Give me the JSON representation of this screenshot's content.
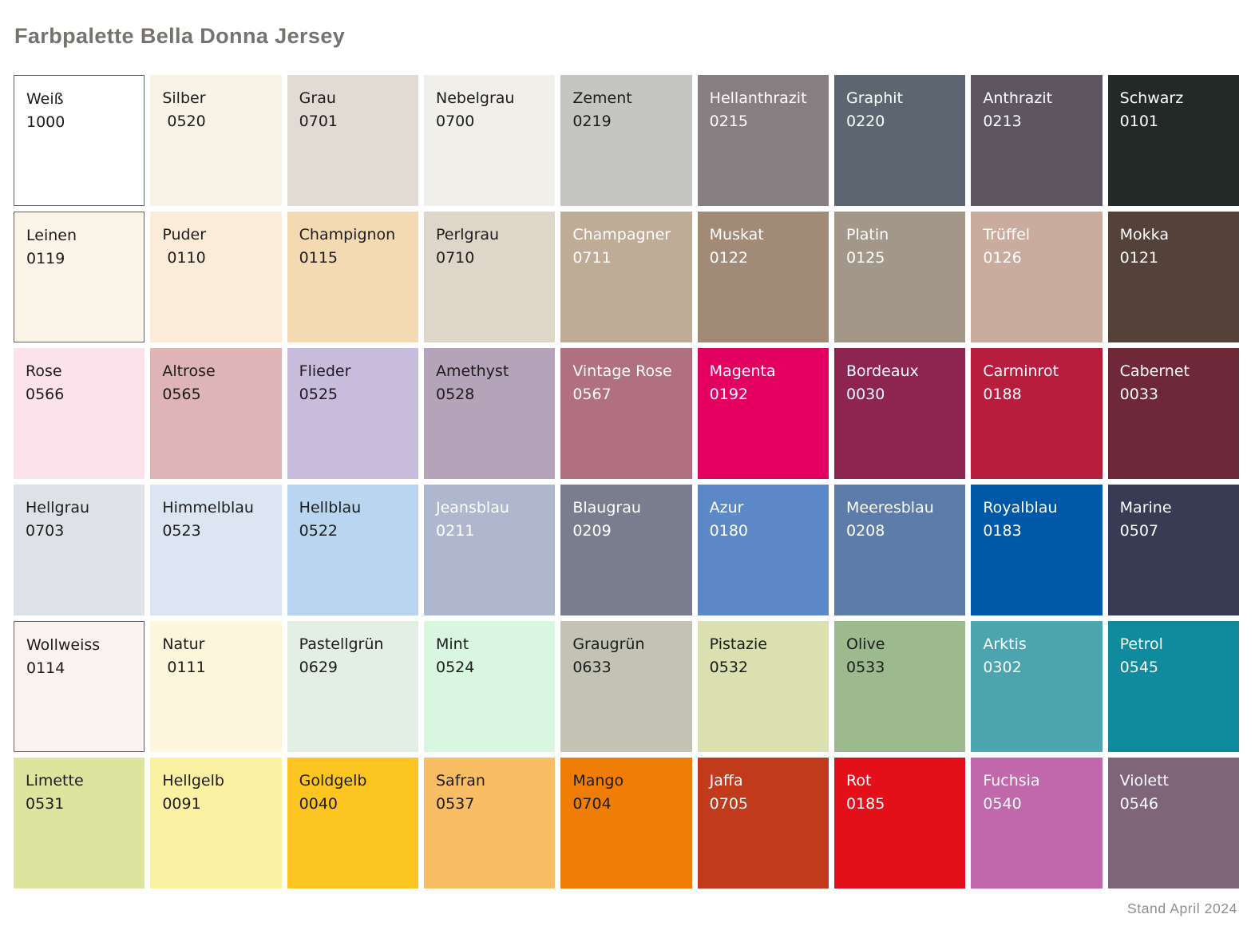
{
  "title": "Farbpalette Bella Donna Jersey",
  "footer": {
    "date_label": "Stand April 2024"
  },
  "palette": {
    "columns": 9,
    "rows": 6,
    "text_dark": "#1c1c1c",
    "text_light": "#ffffff",
    "border_color": "#62625f"
  },
  "swatches": [
    {
      "name": "Weiß",
      "number": "1000",
      "color": "#ffffff",
      "text": "dark",
      "border": true
    },
    {
      "name": "Silber",
      "number": " 0520",
      "color": "#f8f3e7",
      "text": "dark",
      "border": false
    },
    {
      "name": "Grau",
      "number": "0701",
      "color": "#e1dbd3",
      "text": "dark",
      "border": false
    },
    {
      "name": "Nebelgrau",
      "number": "0700",
      "color": "#f1efe9",
      "text": "dark",
      "border": false
    },
    {
      "name": "Zement",
      "number": "0219",
      "color": "#c5c5c2",
      "text": "dark",
      "border": false
    },
    {
      "name": "Hellanthrazit",
      "number": "0215",
      "color": "#867e80",
      "text": "light",
      "border": false
    },
    {
      "name": "Graphit",
      "number": "0220",
      "color": "#5c6671",
      "text": "light",
      "border": false
    },
    {
      "name": "Anthrazit",
      "number": "0213",
      "color": "#5d5560",
      "text": "light",
      "border": false
    },
    {
      "name": "Schwarz",
      "number": "0101",
      "color": "#232926",
      "text": "light",
      "border": false
    },
    {
      "name": "Leinen",
      "number": "0119",
      "color": "#faf4e9",
      "text": "dark",
      "border": true
    },
    {
      "name": "Puder",
      "number": " 0110",
      "color": "#fbecd9",
      "text": "dark",
      "border": false
    },
    {
      "name": "Champignon",
      "number": "0115",
      "color": "#f3dab2",
      "text": "dark",
      "border": false
    },
    {
      "name": "Perlgrau",
      "number": "0710",
      "color": "#ded6c8",
      "text": "dark",
      "border": false
    },
    {
      "name": "Champagner",
      "number": "0711",
      "color": "#bfac97",
      "text": "light",
      "border": false
    },
    {
      "name": "Muskat",
      "number": "0122",
      "color": "#a18a76",
      "text": "light",
      "border": false
    },
    {
      "name": "Platin",
      "number": "0125",
      "color": "#a39789",
      "text": "light",
      "border": false
    },
    {
      "name": "Trüffel",
      "number": "0126",
      "color": "#c9ac9e",
      "text": "light",
      "border": false
    },
    {
      "name": "Mokka",
      "number": "0121",
      "color": "#53413a",
      "text": "light",
      "border": false
    },
    {
      "name": "Rose",
      "number": "0566",
      "color": "#fce3eb",
      "text": "dark",
      "border": false
    },
    {
      "name": "Altrose",
      "number": "0565",
      "color": "#deb4b6",
      "text": "dark",
      "border": false
    },
    {
      "name": "Flieder",
      "number": "0525",
      "color": "#c7bcdc",
      "text": "dark",
      "border": false
    },
    {
      "name": "Amethyst",
      "number": "0528",
      "color": "#b5a3b9",
      "text": "dark",
      "border": false
    },
    {
      "name": "Vintage Rose",
      "number": "0567",
      "color": "#b1707f",
      "text": "light",
      "border": false
    },
    {
      "name": "Magenta",
      "number": "0192",
      "color": "#e40061",
      "text": "light",
      "border": false
    },
    {
      "name": "Bordeaux",
      "number": "0030",
      "color": "#8e2450",
      "text": "light",
      "border": false
    },
    {
      "name": "Carminrot",
      "number": "0188",
      "color": "#b81d3d",
      "text": "light",
      "border": false
    },
    {
      "name": "Cabernet",
      "number": "0033",
      "color": "#6f2837",
      "text": "light",
      "border": false
    },
    {
      "name": "Hellgrau",
      "number": "0703",
      "color": "#dee2e7",
      "text": "dark",
      "border": false
    },
    {
      "name": "Himmelblau",
      "number": "0523",
      "color": "#dce6f3",
      "text": "dark",
      "border": false
    },
    {
      "name": "Hellblau",
      "number": "0522",
      "color": "#b9d5ef",
      "text": "dark",
      "border": false
    },
    {
      "name": "Jeansblau",
      "number": "0211",
      "color": "#aeb7cd",
      "text": "light",
      "border": false
    },
    {
      "name": "Blaugrau",
      "number": "0209",
      "color": "#7a7d8d",
      "text": "light",
      "border": false
    },
    {
      "name": "Azur",
      "number": "0180",
      "color": "#5c88c8",
      "text": "light",
      "border": false
    },
    {
      "name": "Meeresblau",
      "number": "0208",
      "color": "#5e7ca9",
      "text": "light",
      "border": false
    },
    {
      "name": "Royalblau",
      "number": "0183",
      "color": "#0058a9",
      "text": "light",
      "border": false
    },
    {
      "name": "Marine",
      "number": "0507",
      "color": "#373b54",
      "text": "light",
      "border": false
    },
    {
      "name": "Wollweiss",
      "number": "0114",
      "color": "#fbf3f1",
      "text": "dark",
      "border": true
    },
    {
      "name": "Natur",
      "number": " 0111",
      "color": "#fdf6dd",
      "text": "dark",
      "border": false
    },
    {
      "name": "Pastellgrün",
      "number": "0629",
      "color": "#e3eee5",
      "text": "dark",
      "border": false
    },
    {
      "name": "Mint",
      "number": "0524",
      "color": "#d9f6e1",
      "text": "dark",
      "border": false
    },
    {
      "name": "Graugrün",
      "number": "0633",
      "color": "#c3c3b5",
      "text": "dark",
      "border": false
    },
    {
      "name": "Pistazie",
      "number": "0532",
      "color": "#dae0af",
      "text": "dark",
      "border": false
    },
    {
      "name": "Olive",
      "number": "0533",
      "color": "#9dba8e",
      "text": "dark",
      "border": false
    },
    {
      "name": "Arktis",
      "number": "0302",
      "color": "#4ba4ae",
      "text": "light",
      "border": false
    },
    {
      "name": "Petrol",
      "number": "0545",
      "color": "#0f8b9d",
      "text": "light",
      "border": false
    },
    {
      "name": "Limette",
      "number": "0531",
      "color": "#dde49d",
      "text": "dark",
      "border": false
    },
    {
      "name": "Hellgelb",
      "number": "0091",
      "color": "#fbf1a2",
      "text": "dark",
      "border": false
    },
    {
      "name": "Goldgelb",
      "number": "0040",
      "color": "#fcc521",
      "text": "dark",
      "border": false
    },
    {
      "name": "Safran",
      "number": "0537",
      "color": "#f9bd64",
      "text": "dark",
      "border": false
    },
    {
      "name": "Mango",
      "number": "0704",
      "color": "#f07d06",
      "text": "dark",
      "border": false
    },
    {
      "name": "Jaffa",
      "number": "0705",
      "color": "#c13a1b",
      "text": "light",
      "border": false
    },
    {
      "name": "Rot",
      "number": "0185",
      "color": "#e31019",
      "text": "light",
      "border": false
    },
    {
      "name": "Fuchsia",
      "number": "0540",
      "color": "#c168ac",
      "text": "light",
      "border": false
    },
    {
      "name": "Violett",
      "number": "0546",
      "color": "#7e6579",
      "text": "light",
      "border": false
    }
  ]
}
